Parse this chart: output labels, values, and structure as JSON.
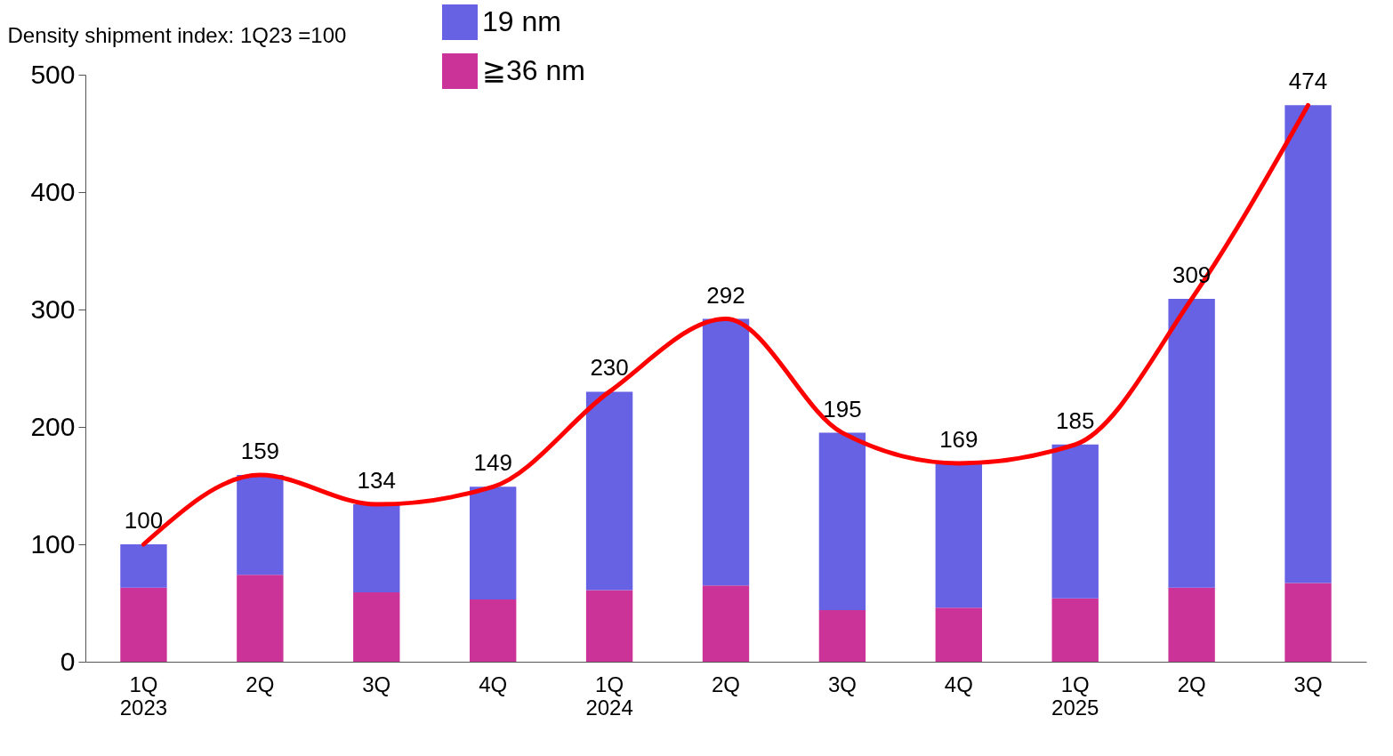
{
  "chart_data": {
    "type": "bar",
    "stacked": true,
    "ylabel": "Density shipment index: 1Q23 =100",
    "categories": [
      "1Q\n2023",
      "2Q",
      "3Q",
      "4Q",
      "1Q\n2024",
      "2Q",
      "3Q",
      "4Q",
      "1Q\n2025",
      "2Q",
      "3Q"
    ],
    "series": [
      {
        "name": "≧36 nm",
        "color": "#cc3399",
        "values": [
          63,
          74,
          59,
          53,
          61,
          65,
          44,
          46,
          54,
          63,
          67
        ]
      },
      {
        "name": "19 nm",
        "color": "#6761e3",
        "values": [
          37,
          85,
          75,
          96,
          169,
          227,
          151,
          123,
          131,
          246,
          407
        ]
      },
      {
        "type": "line",
        "color": "#ff0000",
        "values": [
          100,
          159,
          134,
          149,
          230,
          292,
          195,
          169,
          185,
          309,
          474
        ]
      }
    ],
    "totals": [
      "100",
      "159",
      "134",
      "149",
      "230",
      "292",
      "195",
      "169",
      "185",
      "309",
      "474"
    ],
    "ylim": [
      0,
      500
    ],
    "yticks": [
      0,
      100,
      200,
      300,
      400,
      500
    ],
    "grid": false,
    "legend": "top"
  }
}
